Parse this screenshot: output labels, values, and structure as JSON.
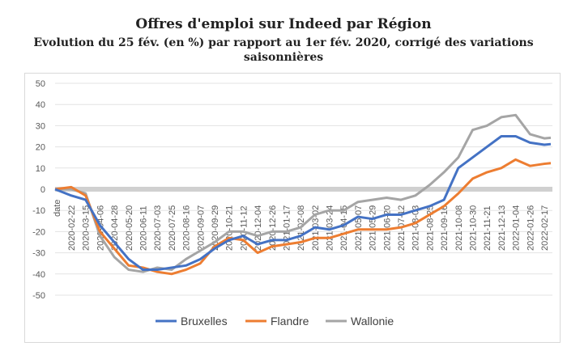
{
  "chart_data": {
    "type": "line",
    "title": "Offres d'emploi sur Indeed par Région",
    "subtitle": "Evolution du 25 fév. (en %) par rapport au 1er fév. 2020, corrigé des variations saisonnières",
    "xlabel": "date",
    "ylabel": "",
    "ylim": [
      -50,
      50
    ],
    "yticks": [
      50,
      40,
      30,
      20,
      10,
      0,
      -10,
      -20,
      -30,
      -40,
      -50
    ],
    "grid": true,
    "legend": "bottom",
    "x": [
      "2020-02-22",
      "2020-03-15",
      "2020-04-06",
      "2020-04-28",
      "2020-05-20",
      "2020-06-11",
      "2020-07-03",
      "2020-07-25",
      "2020-08-16",
      "2020-09-07",
      "2020-09-29",
      "2020-10-21",
      "2020-11-12",
      "2020-12-04",
      "2020-12-26",
      "2021-01-17",
      "2021-02-08",
      "2021-03-02",
      "2021-03-24",
      "2021-04-15",
      "2021-05-07",
      "2021-05-29",
      "2021-06-20",
      "2021-07-12",
      "2021-08-03",
      "2021-08-25",
      "2021-09-16",
      "2021-10-08",
      "2021-10-30",
      "2021-11-21",
      "2021-12-13",
      "2022-01-04",
      "2022-01-26",
      "2022-02-17"
    ],
    "series": [
      {
        "name": "Bruxelles",
        "color": "#4472c4",
        "values": [
          -3,
          -5,
          -17,
          -25,
          -33,
          -38,
          -38,
          -37,
          -36,
          -33,
          -28,
          -24,
          -22,
          -26,
          -24,
          -24,
          -22,
          -18,
          -19,
          -17,
          -13,
          -14,
          -12,
          -12,
          -10,
          -8,
          -5,
          10,
          15,
          20,
          25,
          25,
          22,
          21
        ]
      },
      {
        "name": "Flandre",
        "color": "#ed7d31",
        "values": [
          1,
          -3,
          -20,
          -28,
          -36,
          -37,
          -39,
          -40,
          -38,
          -35,
          -27,
          -23,
          -24,
          -30,
          -27,
          -26,
          -25,
          -23,
          -23,
          -21,
          -19,
          -19,
          -19,
          -18,
          -16,
          -12,
          -8,
          -2,
          5,
          8,
          10,
          14,
          11,
          12
        ]
      },
      {
        "name": "Wallonie",
        "color": "#a5a5a5",
        "values": [
          0,
          -2,
          -22,
          -32,
          -38,
          -39,
          -37,
          -38,
          -33,
          -29,
          -25,
          -20,
          -20,
          -22,
          -20,
          -20,
          -18,
          -12,
          -10,
          -10,
          -6,
          -5,
          -4,
          -5,
          -3,
          2,
          8,
          15,
          28,
          30,
          34,
          35,
          26,
          24
        ]
      }
    ]
  }
}
